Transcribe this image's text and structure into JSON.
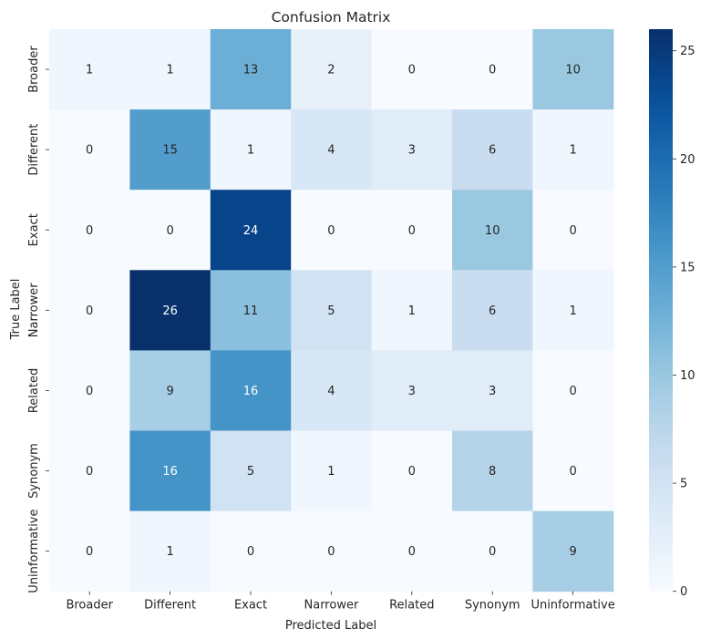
{
  "chart_data": {
    "type": "heatmap",
    "title": "Confusion Matrix",
    "xlabel": "Predicted Label",
    "ylabel": "True Label",
    "x_categories": [
      "Broader",
      "Different",
      "Exact",
      "Narrower",
      "Related",
      "Synonym",
      "Uninformative"
    ],
    "y_categories": [
      "Broader",
      "Different",
      "Exact",
      "Narrower",
      "Related",
      "Synonym",
      "Uninformative"
    ],
    "values": [
      [
        1,
        1,
        13,
        2,
        0,
        0,
        10
      ],
      [
        0,
        15,
        1,
        4,
        3,
        6,
        1
      ],
      [
        0,
        0,
        24,
        0,
        0,
        10,
        0
      ],
      [
        0,
        26,
        11,
        5,
        1,
        6,
        1
      ],
      [
        0,
        9,
        16,
        4,
        3,
        3,
        0
      ],
      [
        0,
        16,
        5,
        1,
        0,
        8,
        0
      ],
      [
        0,
        1,
        0,
        0,
        0,
        0,
        9
      ]
    ],
    "colorscale": "Blues",
    "vmin": 0,
    "vmax": 26,
    "colorbar_ticks": [
      0,
      5,
      10,
      15,
      20,
      25
    ]
  }
}
